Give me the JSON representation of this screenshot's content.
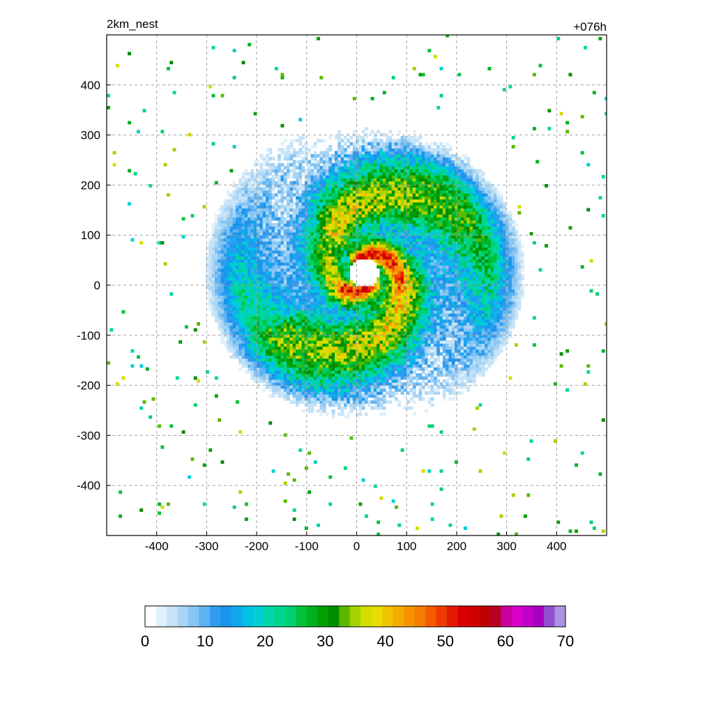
{
  "header": {
    "left_title": "2km_nest",
    "right_title": "+076h"
  },
  "chart_data": {
    "type": "heatmap",
    "title": "2km_nest",
    "subtitle": "+076h",
    "xlabel": "",
    "ylabel": "",
    "xlim": [
      -500,
      500
    ],
    "ylim": [
      -500,
      500
    ],
    "x_ticks": [
      -400,
      -300,
      -200,
      -100,
      0,
      100,
      200,
      300,
      400
    ],
    "y_ticks": [
      400,
      300,
      200,
      100,
      0,
      -100,
      -200,
      -300,
      -400
    ],
    "grid": true,
    "grid_style": "dashed",
    "field": {
      "description_values": "tropical-cyclone reflectivity-like field, eye at (15, 25), eyewall 45-55, rainbands 30-55, outer shield 8-20",
      "eye_center": [
        15,
        25
      ],
      "eye_radius": 30
    },
    "colorbar": {
      "orientation": "horizontal",
      "min": 0,
      "max": 70,
      "step": 2,
      "tick_values": [
        0,
        10,
        20,
        30,
        40,
        50,
        60,
        70
      ],
      "tick_labels": [
        "0",
        "10",
        "20",
        "30",
        "40",
        "50",
        "60",
        "70"
      ],
      "colors": [
        "#ffffff",
        "#e1f0fb",
        "#c6e3f7",
        "#a9d5f5",
        "#87c5f3",
        "#5fb2f1",
        "#2f9cf0",
        "#1a94ec",
        "#10a8ea",
        "#00c0e8",
        "#00cfd2",
        "#00d6a8",
        "#00d68a",
        "#00d070",
        "#00c23a",
        "#00b020",
        "#00a000",
        "#008c00",
        "#5ab800",
        "#a6d200",
        "#d4dc00",
        "#e8dc00",
        "#f2c400",
        "#f5ac00",
        "#f59400",
        "#f57c00",
        "#f55c00",
        "#ee3c00",
        "#e41a00",
        "#d80000",
        "#cc0000",
        "#c00000",
        "#b80020",
        "#c8009c",
        "#d800c8",
        "#c000c8",
        "#a800c0",
        "#9050d0",
        "#b090e0"
      ]
    }
  }
}
